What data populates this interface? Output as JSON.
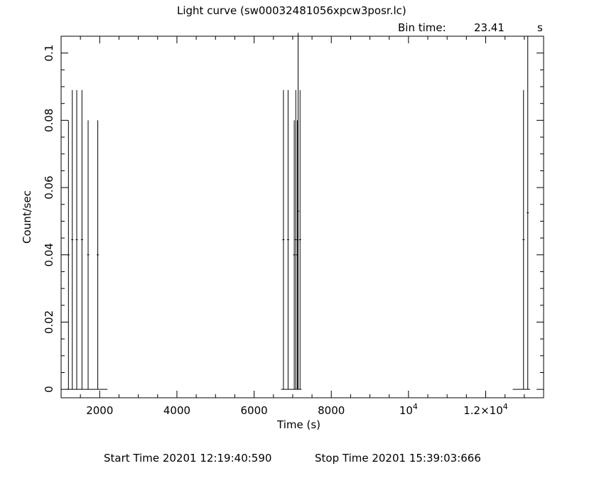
{
  "chart_data": {
    "type": "line",
    "title": "Light curve (sw00032481056xpcw3posr.lc)",
    "bin_time_label": "Bin time:",
    "bin_time_value": "23.41",
    "bin_time_unit": "s",
    "xlabel": "Time (s)",
    "ylabel": "Count/sec",
    "xlim": [
      1000,
      13500
    ],
    "ylim": [
      -0.0025,
      0.105
    ],
    "xticks": [
      {
        "v": 2000,
        "label": "2000"
      },
      {
        "v": 4000,
        "label": "4000"
      },
      {
        "v": 6000,
        "label": "6000"
      },
      {
        "v": 8000,
        "label": "8000"
      },
      {
        "v": 10000,
        "label": "10^4"
      },
      {
        "v": 12000,
        "label": "1.2×10^4"
      }
    ],
    "yticks": [
      {
        "v": 0,
        "label": "0"
      },
      {
        "v": 0.02,
        "label": "0.02"
      },
      {
        "v": 0.04,
        "label": "0.04"
      },
      {
        "v": 0.06,
        "label": "0.06"
      },
      {
        "v": 0.08,
        "label": "0.08"
      },
      {
        "v": 0.1,
        "label": "0.1"
      }
    ],
    "baseline_segments": [
      [
        1150,
        2200
      ],
      [
        6700,
        7230
      ],
      [
        12700,
        13150
      ]
    ],
    "points": [
      {
        "x": 1190,
        "y": 0.04,
        "err": 0.04
      },
      {
        "x": 1290,
        "y": 0.0445,
        "err": 0.0445
      },
      {
        "x": 1405,
        "y": 0.0445,
        "err": 0.0445
      },
      {
        "x": 1540,
        "y": 0.0445,
        "err": 0.0445
      },
      {
        "x": 1700,
        "y": 0.04,
        "err": 0.04
      },
      {
        "x": 1950,
        "y": 0.04,
        "err": 0.04
      },
      {
        "x": 6760,
        "y": 0.0445,
        "err": 0.0445
      },
      {
        "x": 6880,
        "y": 0.0445,
        "err": 0.0445
      },
      {
        "x": 7040,
        "y": 0.04,
        "err": 0.04
      },
      {
        "x": 7080,
        "y": 0.0445,
        "err": 0.0445
      },
      {
        "x": 7120,
        "y": 0.04,
        "err": 0.04
      },
      {
        "x": 7140,
        "y": 0.053,
        "err": 0.053
      },
      {
        "x": 7190,
        "y": 0.0445,
        "err": 0.0445
      },
      {
        "x": 12980,
        "y": 0.0445,
        "err": 0.0445
      },
      {
        "x": 13090,
        "y": 0.0525,
        "err": 0.0525
      }
    ]
  },
  "footer": {
    "start_time": "Start Time 20201 12:19:40:590",
    "stop_time": "Stop Time 20201 15:39:03:666"
  }
}
